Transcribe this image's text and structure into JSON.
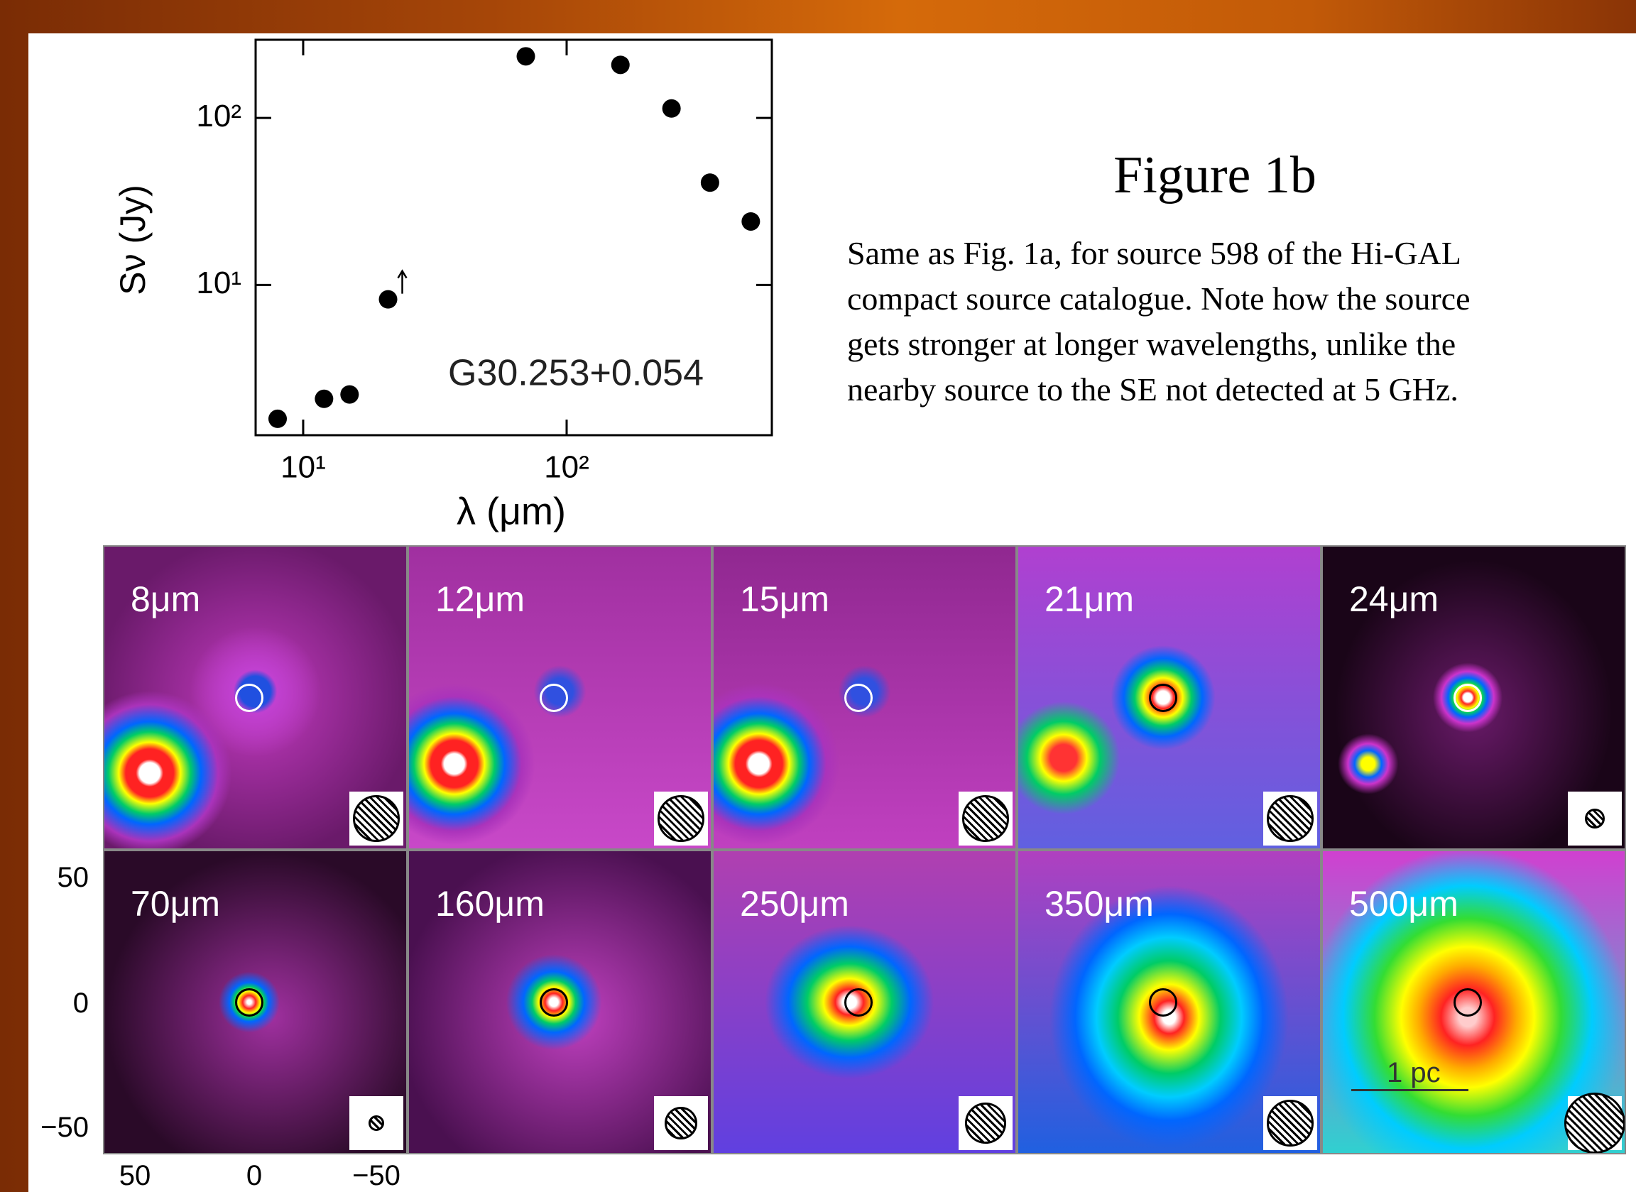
{
  "chart_data": {
    "type": "scatter",
    "xlabel": "λ (μm)",
    "ylabel": "Sν (Jy)",
    "annotation": "G30.253+0.054",
    "x": [
      8,
      12,
      15,
      21,
      70,
      160,
      250,
      350,
      500
    ],
    "values": [
      1.58,
      2.08,
      2.21,
      8.2,
      234,
      208,
      114,
      41,
      24
    ],
    "lower_limit": [
      false,
      false,
      false,
      true,
      false,
      false,
      false,
      false,
      false
    ],
    "xlim": [
      6.6,
      601
    ],
    "ylim": [
      1.26,
      294
    ],
    "xscale": "log",
    "yscale": "log",
    "xticks": [
      {
        "value": 10,
        "label": "10¹"
      },
      {
        "value": 100,
        "label": "10²"
      }
    ],
    "yticks": [
      {
        "value": 10,
        "label": "10¹"
      },
      {
        "value": 100,
        "label": "10²"
      }
    ],
    "color": "#000000"
  },
  "figure": {
    "title": "Figure 1b",
    "caption": [
      "Same as Fig. 1a, for source 598 of the Hi-GAL",
      "compact source catalogue. Note how the source",
      "gets stronger at longer wavelengths, unlike the",
      "nearby source to the SE not detected at 5 GHz."
    ]
  },
  "image_grid": {
    "panels": [
      "8μm",
      "12μm",
      "15μm",
      "21μm",
      "24μm",
      "70μm",
      "160μm",
      "250μm",
      "350μm",
      "500μm"
    ],
    "y_axis_labels": [
      "50",
      "0",
      "−50"
    ],
    "x_axis_labels": [
      "50",
      "0",
      "−50"
    ],
    "scale_bar": "1 pc"
  }
}
